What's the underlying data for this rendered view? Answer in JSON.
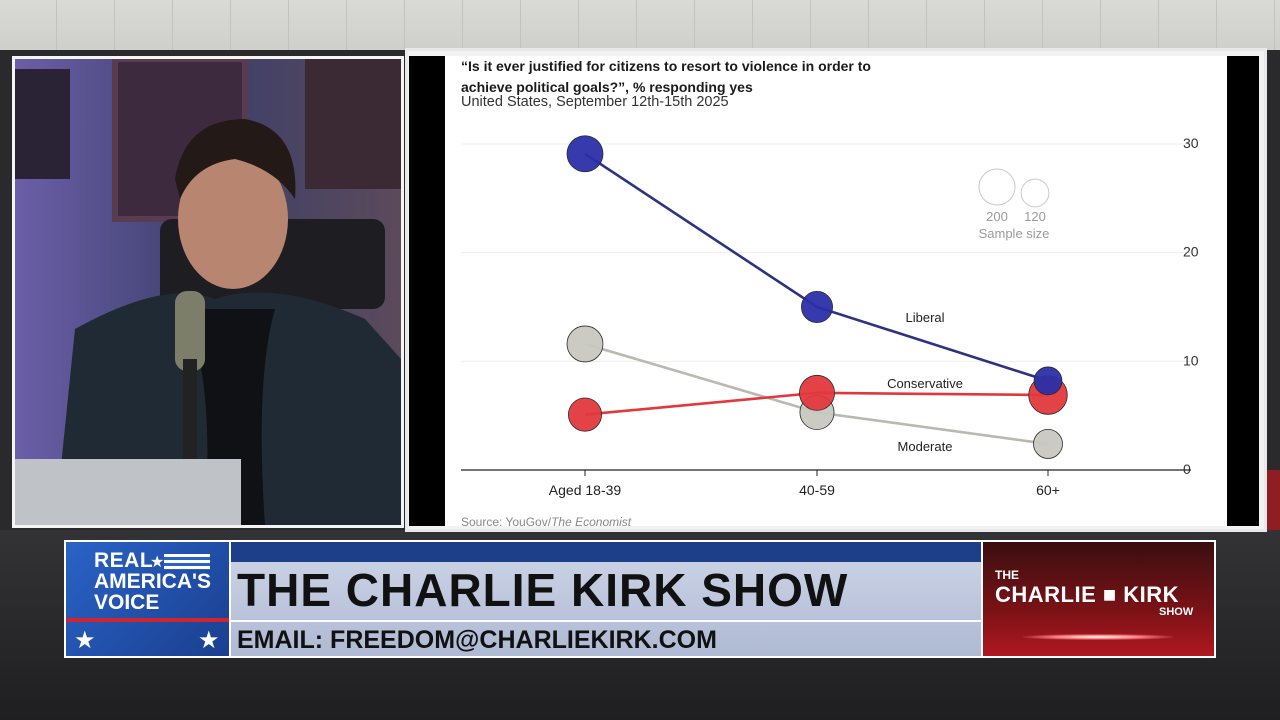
{
  "chart_data": {
    "type": "line",
    "title": "“Is it ever justified for citizens to resort to violence in order to achieve political goals?”, % responding yes",
    "subtitle": "United States, September 12th-15th 2025",
    "source_prefix": "Source: YouGov/",
    "source_italic": "The Economist",
    "categories": [
      "Aged 18-39",
      "40-59",
      "60+"
    ],
    "ylim": [
      0,
      30
    ],
    "yticks": [
      0,
      10,
      20,
      30
    ],
    "y_axis_side": "right",
    "grid": true,
    "series": [
      {
        "name": "Liberal",
        "color": "#2b2fa8",
        "line_color": "#2e3380",
        "values": [
          29.1,
          15.0,
          8.2
        ],
        "sizes": [
          200,
          150,
          120
        ]
      },
      {
        "name": "Moderate",
        "color": "#c8c7c0",
        "line_color": "#b9b8b1",
        "values": [
          11.6,
          5.3,
          2.4
        ],
        "sizes": [
          200,
          180,
          130
        ]
      },
      {
        "name": "Conservative",
        "color": "#e2383d",
        "line_color": "#e2383d",
        "values": [
          5.1,
          7.1,
          6.9
        ],
        "sizes": [
          170,
          190,
          230
        ]
      }
    ],
    "size_legend": {
      "values": [
        "200",
        "120"
      ],
      "title": "Sample size"
    }
  },
  "lower_third": {
    "network_line1": "REAL",
    "network_line2": "AMERICA'S",
    "network_line3": "VOICE",
    "show_title": "THE CHARLIE KIRK SHOW",
    "email": "EMAIL: FREEDOM@CHARLIEKIRK.COM",
    "brand_the": "THE",
    "brand_name": "CHARLIE ■ KIRK",
    "brand_show": "SHOW"
  }
}
